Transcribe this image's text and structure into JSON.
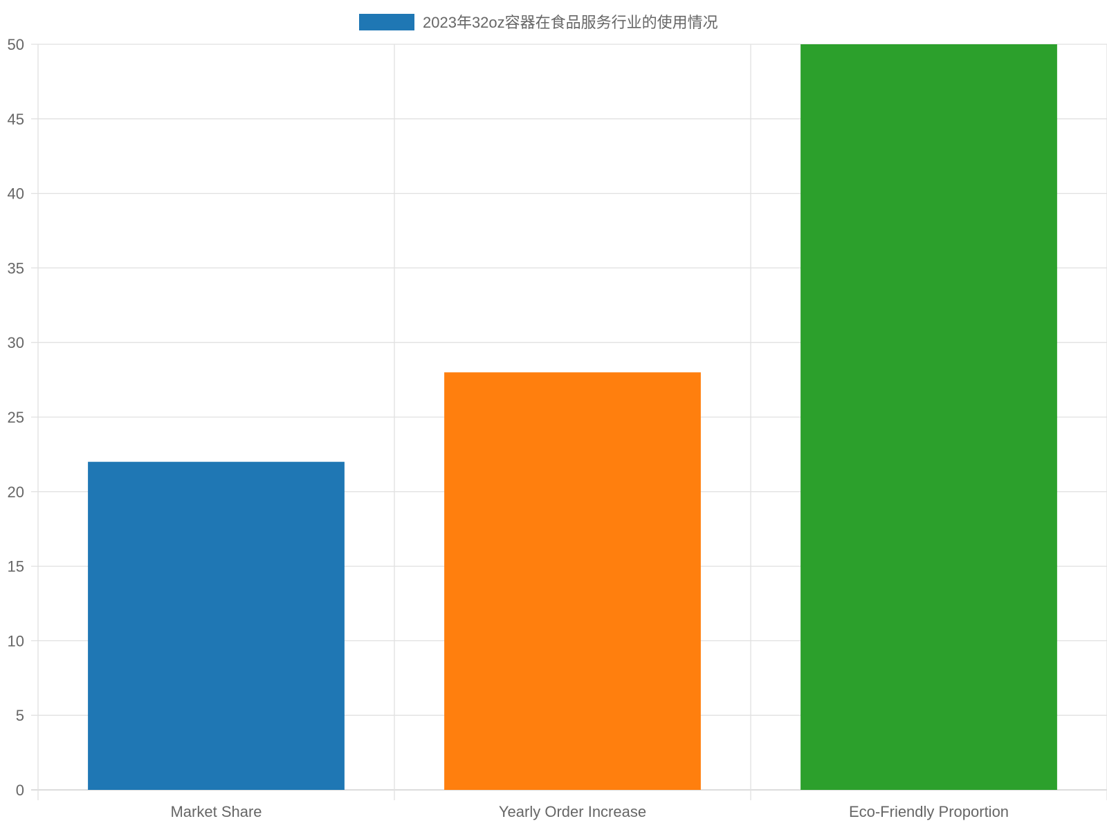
{
  "chart_data": {
    "type": "bar",
    "categories": [
      "Market Share",
      "Yearly Order Increase",
      "Eco-Friendly Proportion"
    ],
    "series": [
      {
        "name": "2023年32oz容器在食品服务行业的使用情况",
        "values": [
          22,
          28,
          50
        ],
        "colors": [
          "#1f77b4",
          "#ff7f0e",
          "#2ca02c"
        ]
      }
    ],
    "ylim": [
      0,
      50
    ],
    "yticks": [
      0,
      5,
      10,
      15,
      20,
      25,
      30,
      35,
      40,
      45,
      50
    ],
    "grid": true,
    "legend_position": "top-center",
    "legend_color": "#1f77b4",
    "grid_color": "#e0e0e0",
    "text_color": "#666666"
  }
}
